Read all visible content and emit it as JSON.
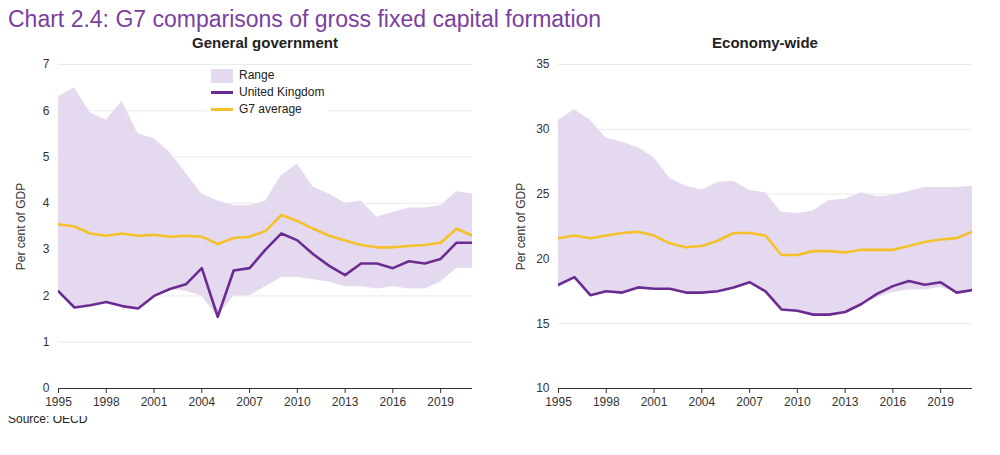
{
  "title": "Chart 2.4: G7 comparisons of gross fixed capital formation",
  "source": "Source: OECD",
  "chart_data": [
    {
      "type": "line",
      "title": "General government",
      "ylabel": "Per cent of GDP",
      "x": [
        1995,
        1996,
        1997,
        1998,
        1999,
        2000,
        2001,
        2002,
        2003,
        2004,
        2005,
        2006,
        2007,
        2008,
        2009,
        2010,
        2011,
        2012,
        2013,
        2014,
        2015,
        2016,
        2017,
        2018,
        2019,
        2020,
        2021
      ],
      "xlim": [
        1995,
        2021
      ],
      "xticks": [
        1995,
        1998,
        2001,
        2004,
        2007,
        2010,
        2013,
        2016,
        2019
      ],
      "ylim": [
        0,
        7
      ],
      "yticks": [
        0,
        1,
        2,
        3,
        4,
        5,
        6,
        7
      ],
      "grid": true,
      "legend": "top",
      "series": [
        {
          "name": "Range",
          "type": "area",
          "color": "#e4d9ee",
          "low": [
            2.1,
            1.75,
            1.8,
            1.87,
            1.78,
            1.73,
            2.0,
            2.15,
            2.1,
            2.0,
            1.55,
            2.0,
            2.0,
            2.2,
            2.4,
            2.4,
            2.35,
            2.3,
            2.2,
            2.2,
            2.15,
            2.2,
            2.15,
            2.15,
            2.3,
            2.6,
            2.6
          ],
          "high": [
            6.3,
            6.5,
            5.95,
            5.8,
            6.2,
            5.5,
            5.4,
            5.1,
            4.65,
            4.2,
            4.05,
            3.95,
            3.95,
            4.05,
            4.6,
            4.85,
            4.35,
            4.2,
            4.0,
            4.05,
            3.7,
            3.8,
            3.9,
            3.9,
            3.95,
            4.25,
            4.2
          ]
        },
        {
          "name": "United Kingdom",
          "type": "line",
          "color": "#6b2c91",
          "values": [
            2.1,
            1.75,
            1.8,
            1.87,
            1.78,
            1.73,
            2.0,
            2.15,
            2.25,
            2.6,
            1.55,
            2.55,
            2.6,
            3.0,
            3.35,
            3.2,
            2.9,
            2.65,
            2.45,
            2.7,
            2.7,
            2.6,
            2.75,
            2.7,
            2.8,
            3.15,
            3.15
          ]
        },
        {
          "name": "G7 average",
          "type": "line",
          "color": "#f4c12b",
          "values": [
            3.55,
            3.5,
            3.35,
            3.3,
            3.35,
            3.3,
            3.32,
            3.28,
            3.3,
            3.28,
            3.12,
            3.25,
            3.28,
            3.4,
            3.75,
            3.62,
            3.45,
            3.3,
            3.2,
            3.1,
            3.05,
            3.05,
            3.08,
            3.1,
            3.15,
            3.45,
            3.3
          ]
        }
      ]
    },
    {
      "type": "line",
      "title": "Economy-wide",
      "ylabel": "Per cent of GDP",
      "x": [
        1995,
        1996,
        1997,
        1998,
        1999,
        2000,
        2001,
        2002,
        2003,
        2004,
        2005,
        2006,
        2007,
        2008,
        2009,
        2010,
        2011,
        2012,
        2013,
        2014,
        2015,
        2016,
        2017,
        2018,
        2019,
        2020,
        2021
      ],
      "xlim": [
        1995,
        2021
      ],
      "xticks": [
        1995,
        1998,
        2001,
        2004,
        2007,
        2010,
        2013,
        2016,
        2019
      ],
      "ylim": [
        10,
        35
      ],
      "yticks": [
        10,
        15,
        20,
        25,
        30,
        35
      ],
      "grid": true,
      "series": [
        {
          "name": "Range",
          "type": "area",
          "color": "#e4d9ee",
          "low": [
            18.0,
            18.6,
            17.2,
            17.5,
            17.4,
            17.8,
            17.7,
            17.7,
            17.4,
            17.4,
            17.5,
            17.8,
            18.2,
            17.5,
            16.1,
            16.0,
            15.7,
            15.7,
            15.9,
            16.5,
            17.0,
            17.4,
            17.6,
            17.6,
            17.8,
            17.4,
            17.6
          ],
          "high": [
            30.7,
            31.5,
            30.7,
            29.3,
            29.0,
            28.6,
            27.8,
            26.2,
            25.6,
            25.3,
            25.9,
            26.0,
            25.3,
            25.1,
            23.6,
            23.5,
            23.7,
            24.5,
            24.6,
            25.1,
            24.8,
            24.9,
            25.2,
            25.5,
            25.5,
            25.5,
            25.6
          ]
        },
        {
          "name": "United Kingdom",
          "type": "line",
          "color": "#6b2c91",
          "values": [
            18.0,
            18.6,
            17.2,
            17.5,
            17.4,
            17.8,
            17.7,
            17.7,
            17.4,
            17.4,
            17.5,
            17.8,
            18.2,
            17.5,
            16.1,
            16.0,
            15.7,
            15.7,
            15.9,
            16.5,
            17.3,
            17.9,
            18.3,
            18.0,
            18.2,
            17.4,
            17.6
          ]
        },
        {
          "name": "G7 average",
          "type": "line",
          "color": "#f4c12b",
          "values": [
            21.6,
            21.8,
            21.6,
            21.8,
            22.0,
            22.1,
            21.8,
            21.2,
            20.9,
            21.0,
            21.4,
            22.0,
            22.0,
            21.8,
            20.3,
            20.3,
            20.6,
            20.6,
            20.5,
            20.7,
            20.7,
            20.7,
            21.0,
            21.3,
            21.5,
            21.6,
            22.1
          ]
        }
      ]
    }
  ]
}
